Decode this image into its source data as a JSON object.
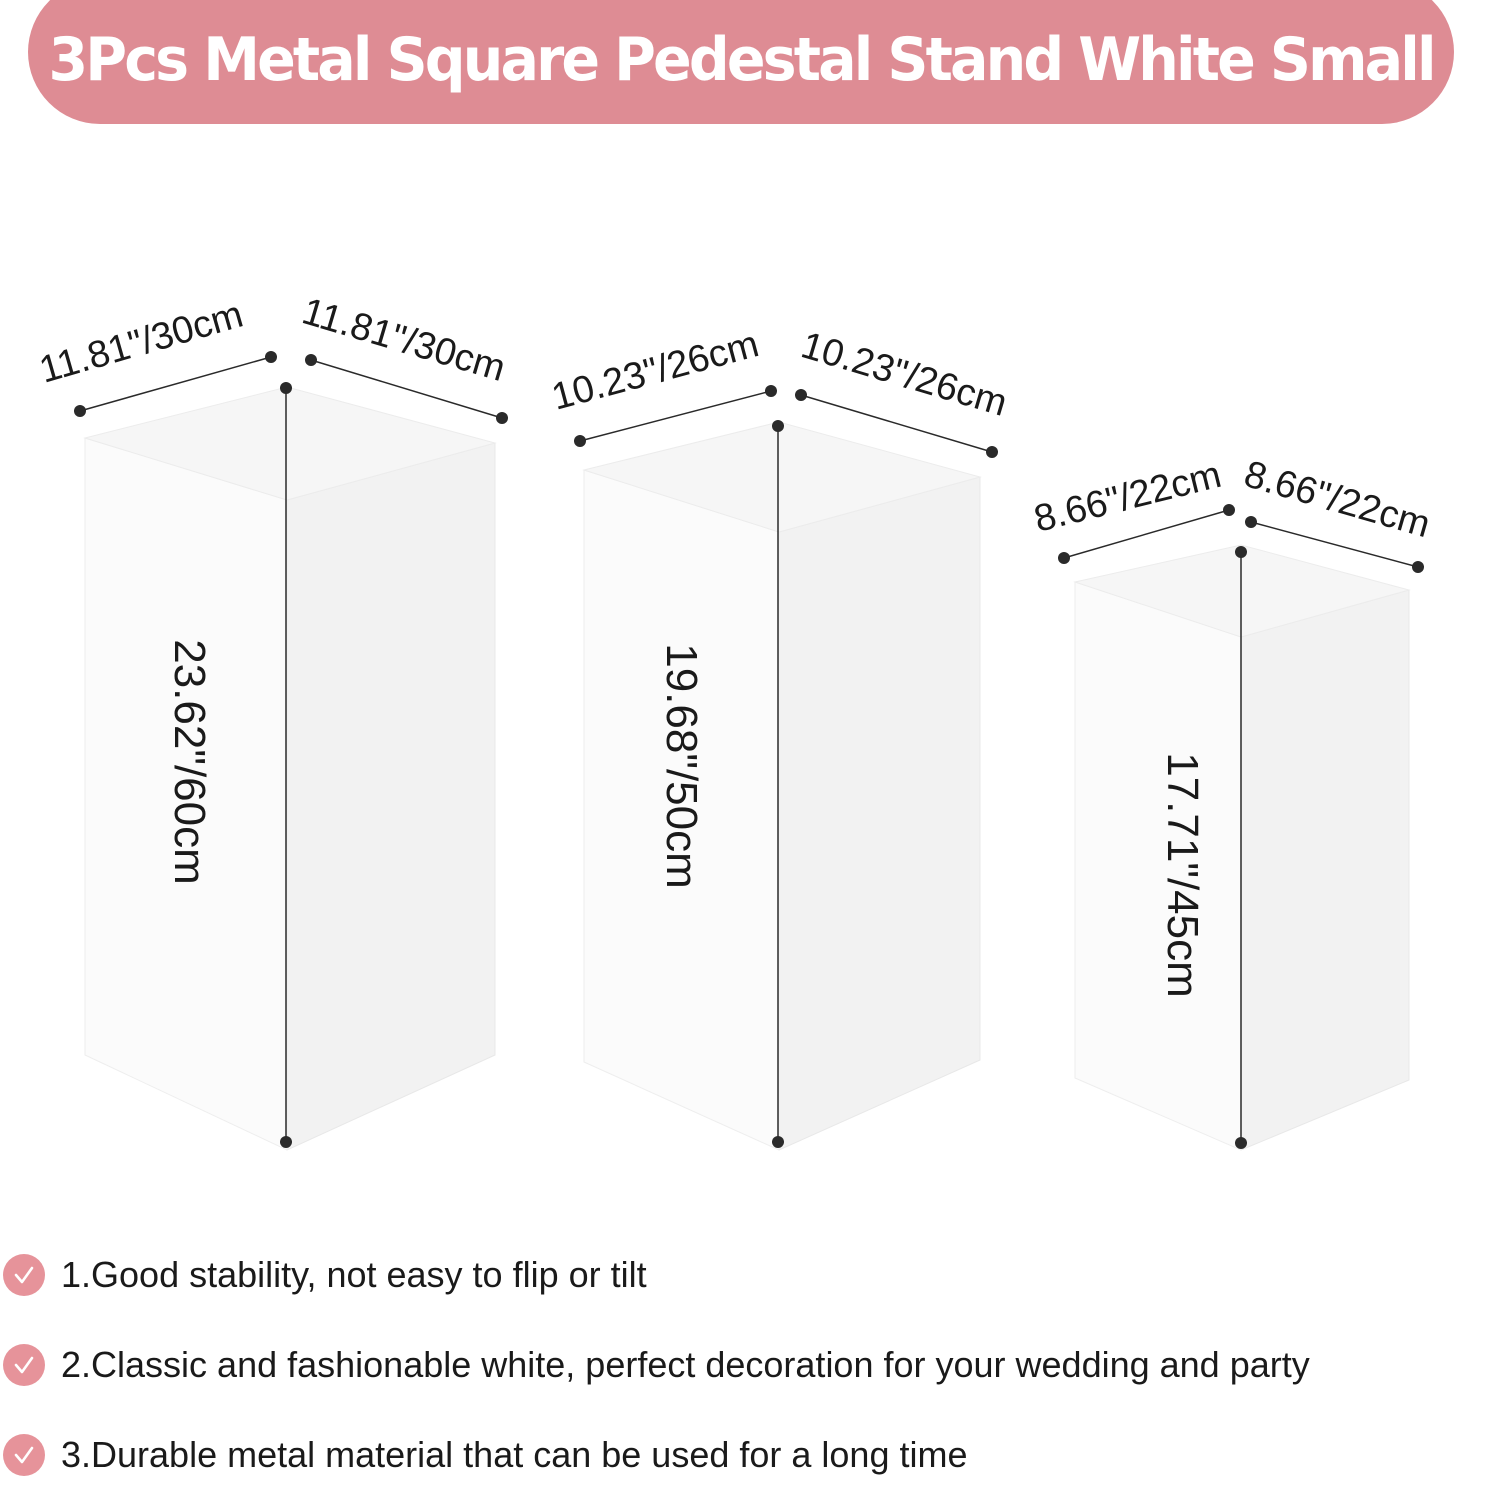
{
  "title": "3Pcs Metal Square Pedestal Stand White Small",
  "colors": {
    "banner": "#de8c94",
    "check": "#e6939a",
    "pedestal_front": "#fbfbfb",
    "pedestal_side": "#f2f2f2",
    "pedestal_top": "#f6f6f6",
    "dimension_line": "#2a2a2a"
  },
  "pedestals": [
    {
      "width_label": "11.81\"/30cm",
      "depth_label": "11.81\"/30cm",
      "height_label": "23.62\"/60cm"
    },
    {
      "width_label": "10.23\"/26cm",
      "depth_label": "10.23\"/26cm",
      "height_label": "19.68\"/50cm"
    },
    {
      "width_label": "8.66\"/22cm",
      "depth_label": "8.66\"/22cm",
      "height_label": "17.71\"/45cm"
    }
  ],
  "features": [
    {
      "icon": "check-circle-icon",
      "text": "1.Good stability, not easy to flip or tilt"
    },
    {
      "icon": "check-circle-icon",
      "text": "2.Classic and fashionable white, perfect decoration for your wedding and party"
    },
    {
      "icon": "check-circle-icon",
      "text": "3.Durable metal material that can be used for a long time"
    }
  ]
}
